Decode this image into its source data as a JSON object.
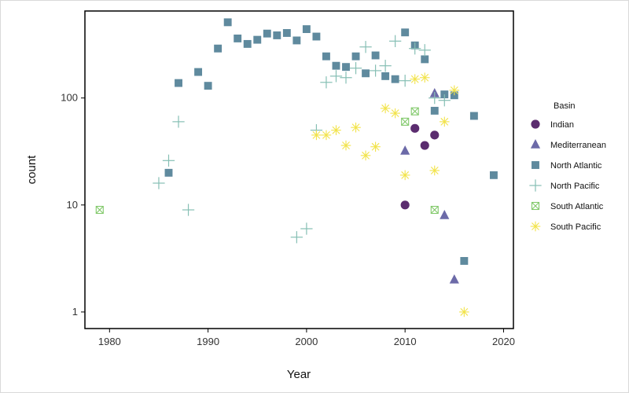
{
  "chart_data": {
    "type": "scatter",
    "xlabel": "Year",
    "ylabel": "count",
    "y_scale": "log10",
    "xlim": [
      1977.5,
      2021
    ],
    "ylim": [
      0.7,
      650
    ],
    "x_ticks": [
      1980,
      1990,
      2000,
      2010,
      2020
    ],
    "y_ticks": [
      1,
      10,
      100
    ],
    "x_tick_labels": [
      "1980",
      "1990",
      "2000",
      "2010",
      "2020"
    ],
    "y_tick_labels": [
      "1",
      "10",
      "100"
    ],
    "grid": false,
    "legend": {
      "title": "Basin",
      "position": "right"
    },
    "series": [
      {
        "name": "Indian",
        "marker": "circle",
        "color": "#5b2c6f",
        "points": [
          [
            2010,
            10
          ],
          [
            2011,
            52
          ],
          [
            2012,
            36
          ],
          [
            2013,
            45
          ]
        ]
      },
      {
        "name": "Mediterranean",
        "marker": "triangle",
        "color": "#6c6aa8",
        "points": [
          [
            2010,
            32
          ],
          [
            2013,
            110
          ],
          [
            2014,
            8
          ],
          [
            2015,
            2
          ]
        ]
      },
      {
        "name": "North Atlantic",
        "marker": "square",
        "color": "#5f8a9e",
        "points": [
          [
            1986,
            20
          ],
          [
            1987,
            138
          ],
          [
            1989,
            175
          ],
          [
            1990,
            130
          ],
          [
            1991,
            290
          ],
          [
            1992,
            510
          ],
          [
            1993,
            360
          ],
          [
            1994,
            320
          ],
          [
            1995,
            350
          ],
          [
            1996,
            400
          ],
          [
            1997,
            385
          ],
          [
            1998,
            405
          ],
          [
            1999,
            345
          ],
          [
            2000,
            440
          ],
          [
            2001,
            375
          ],
          [
            2002,
            245
          ],
          [
            2003,
            200
          ],
          [
            2004,
            195
          ],
          [
            2005,
            245
          ],
          [
            2006,
            170
          ],
          [
            2007,
            250
          ],
          [
            2008,
            160
          ],
          [
            2009,
            150
          ],
          [
            2010,
            410
          ],
          [
            2011,
            310
          ],
          [
            2012,
            230
          ],
          [
            2013,
            76
          ],
          [
            2014,
            108
          ],
          [
            2015,
            106
          ],
          [
            2016,
            3
          ],
          [
            2017,
            68
          ],
          [
            2019,
            19
          ]
        ]
      },
      {
        "name": "North Pacific",
        "marker": "plus",
        "color": "#86bfb4",
        "points": [
          [
            1985,
            16
          ],
          [
            1986,
            26
          ],
          [
            1987,
            60
          ],
          [
            1988,
            9
          ],
          [
            1999,
            5
          ],
          [
            2000,
            6
          ],
          [
            2001,
            50
          ],
          [
            2002,
            140
          ],
          [
            2003,
            160
          ],
          [
            2004,
            155
          ],
          [
            2005,
            190
          ],
          [
            2006,
            300
          ],
          [
            2007,
            180
          ],
          [
            2008,
            200
          ],
          [
            2009,
            340
          ],
          [
            2010,
            145
          ],
          [
            2011,
            290
          ],
          [
            2012,
            280
          ],
          [
            2013,
            100
          ],
          [
            2014,
            95
          ]
        ]
      },
      {
        "name": "South Atlantic",
        "marker": "boxx",
        "color": "#82c96b",
        "points": [
          [
            1979,
            9
          ],
          [
            2010,
            60
          ],
          [
            2011,
            75
          ],
          [
            2013,
            9
          ]
        ]
      },
      {
        "name": "South Pacific",
        "marker": "asterisk",
        "color": "#f2e34a",
        "points": [
          [
            2001,
            45
          ],
          [
            2002,
            45
          ],
          [
            2003,
            50
          ],
          [
            2004,
            36
          ],
          [
            2005,
            53
          ],
          [
            2006,
            29
          ],
          [
            2007,
            35
          ],
          [
            2008,
            80
          ],
          [
            2009,
            72
          ],
          [
            2010,
            19
          ],
          [
            2011,
            150
          ],
          [
            2012,
            155
          ],
          [
            2013,
            21
          ],
          [
            2014,
            60
          ],
          [
            2015,
            118
          ],
          [
            2016,
            1
          ]
        ]
      }
    ]
  }
}
